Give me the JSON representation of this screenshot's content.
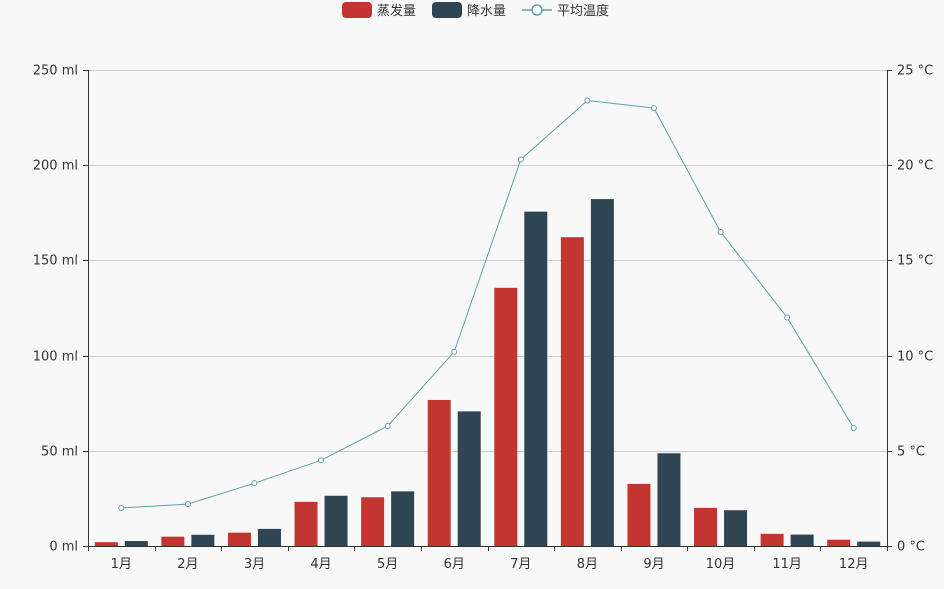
{
  "chart_data": {
    "type": "bar",
    "categories": [
      "1月",
      "2月",
      "3月",
      "4月",
      "5月",
      "6月",
      "7月",
      "8月",
      "9月",
      "10月",
      "11月",
      "12月"
    ],
    "series": [
      {
        "name": "蒸发量",
        "type": "bar",
        "axis": "left",
        "color": "#c23531",
        "values": [
          2.0,
          4.9,
          7.0,
          23.2,
          25.6,
          76.7,
          135.6,
          162.2,
          32.6,
          20.0,
          6.4,
          3.3
        ]
      },
      {
        "name": "降水量",
        "type": "bar",
        "axis": "left",
        "color": "#2f4554",
        "values": [
          2.6,
          5.9,
          9.0,
          26.4,
          28.7,
          70.7,
          175.6,
          182.2,
          48.7,
          18.8,
          6.0,
          2.3
        ]
      },
      {
        "name": "平均温度",
        "type": "line",
        "axis": "right",
        "color": "#61a0a8",
        "values": [
          2.0,
          2.2,
          3.3,
          4.5,
          6.3,
          10.2,
          20.3,
          23.4,
          23.0,
          16.5,
          12.0,
          6.2
        ]
      }
    ],
    "y_left": {
      "min": 0,
      "max": 250,
      "ticks": [
        0,
        50,
        100,
        150,
        200,
        250
      ],
      "unit": "ml"
    },
    "y_right": {
      "min": 0,
      "max": 25,
      "ticks": [
        0,
        5,
        10,
        15,
        20,
        25
      ],
      "unit": "°C"
    },
    "grid": true,
    "legend_position": "top-center"
  }
}
